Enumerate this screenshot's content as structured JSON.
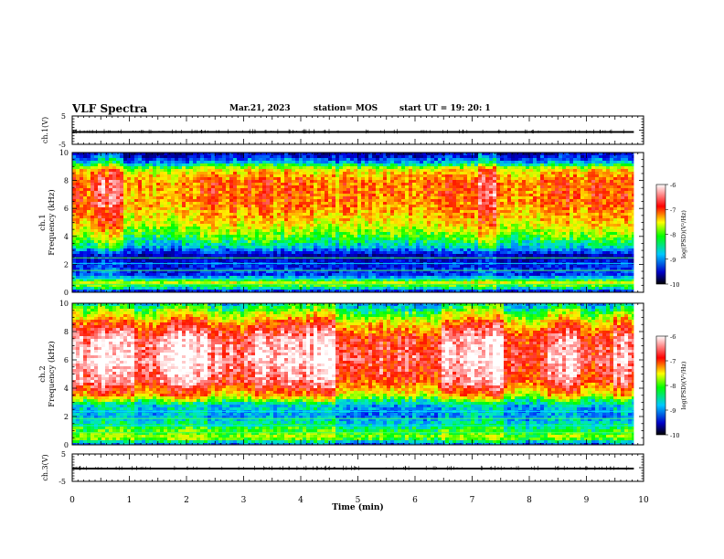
{
  "header": {
    "title": "VLF Spectra",
    "date": "Mar.21, 2023",
    "station": "station= MOS",
    "start": "start  UT  =   19: 20: 1"
  },
  "colors": {
    "colormap": [
      "#000080",
      "#0000ff",
      "#00c8ff",
      "#00ff00",
      "#ffff00",
      "#ff0000",
      "#ffffff"
    ]
  },
  "chart_data": [
    {
      "type": "line",
      "name": "ch1-waveform",
      "ylabel": "ch.1(V)",
      "ylim": [
        -5,
        5
      ],
      "yticks": [
        "5",
        "-5"
      ],
      "xlim": [
        0,
        10
      ],
      "x": [
        0,
        9.83
      ],
      "y": [
        0,
        0
      ]
    },
    {
      "type": "heatmap",
      "name": "ch1-spectrogram",
      "ylabel_line1": "ch.1",
      "ylabel_line2": "Frequency (kHz)",
      "ylim": [
        0,
        10
      ],
      "yticks": [
        "0",
        "2",
        "4",
        "6",
        "8",
        "10"
      ],
      "xlim": [
        0,
        10
      ],
      "data_xmax": 9.83,
      "colorbar": {
        "label": "log(PSD)(V²/Hz)",
        "ticks": [
          "-6",
          "-7",
          "-8",
          "-9",
          "-10"
        ],
        "range": [
          -10,
          -6
        ]
      },
      "profile": [
        {
          "f": 0.0,
          "v": -9.6
        },
        {
          "f": 0.3,
          "v": -8.5
        },
        {
          "f": 0.7,
          "v": -7.6
        },
        {
          "f": 1.2,
          "v": -9.2
        },
        {
          "f": 2.0,
          "v": -9.4
        },
        {
          "f": 2.6,
          "v": -9.7
        },
        {
          "f": 3.2,
          "v": -8.6
        },
        {
          "f": 4.0,
          "v": -7.9
        },
        {
          "f": 5.0,
          "v": -7.3
        },
        {
          "f": 6.5,
          "v": -6.9
        },
        {
          "f": 8.0,
          "v": -6.9
        },
        {
          "f": 8.8,
          "v": -7.4
        },
        {
          "f": 9.3,
          "v": -8.7
        },
        {
          "f": 9.7,
          "v": -9.3
        },
        {
          "f": 10.0,
          "v": -9.6
        }
      ]
    },
    {
      "type": "heatmap",
      "name": "ch2-spectrogram",
      "ylabel_line1": "ch.2",
      "ylabel_line2": "Frequency (kHz)",
      "ylim": [
        0,
        10
      ],
      "yticks": [
        "0",
        "2",
        "4",
        "6",
        "8",
        "10"
      ],
      "xlim": [
        0,
        10
      ],
      "data_xmax": 9.83,
      "colorbar": {
        "label": "log(PSD)(V²/Hz)",
        "ticks": [
          "-6",
          "-7",
          "-8",
          "-9",
          "-10"
        ],
        "range": [
          -10,
          -6
        ]
      },
      "profile": [
        {
          "f": 0.0,
          "v": -9.2
        },
        {
          "f": 0.5,
          "v": -7.8
        },
        {
          "f": 1.2,
          "v": -8.3
        },
        {
          "f": 2.0,
          "v": -8.9
        },
        {
          "f": 2.8,
          "v": -8.7
        },
        {
          "f": 3.5,
          "v": -7.3
        },
        {
          "f": 4.5,
          "v": -6.5
        },
        {
          "f": 6.0,
          "v": -6.2
        },
        {
          "f": 7.5,
          "v": -6.4
        },
        {
          "f": 8.5,
          "v": -7.0
        },
        {
          "f": 9.3,
          "v": -7.8
        },
        {
          "f": 10.0,
          "v": -8.6
        }
      ]
    },
    {
      "type": "line",
      "name": "ch3-waveform",
      "ylabel": "ch.3(V)",
      "ylim": [
        -5,
        5
      ],
      "yticks": [
        "5",
        "-5"
      ],
      "xlim": [
        0,
        10
      ],
      "x": [
        0,
        9.83
      ],
      "y": [
        0,
        0
      ]
    }
  ],
  "xaxis": {
    "label": "Time (min)",
    "ticks": [
      "0",
      "1",
      "2",
      "3",
      "4",
      "5",
      "6",
      "7",
      "8",
      "9",
      "10"
    ]
  }
}
